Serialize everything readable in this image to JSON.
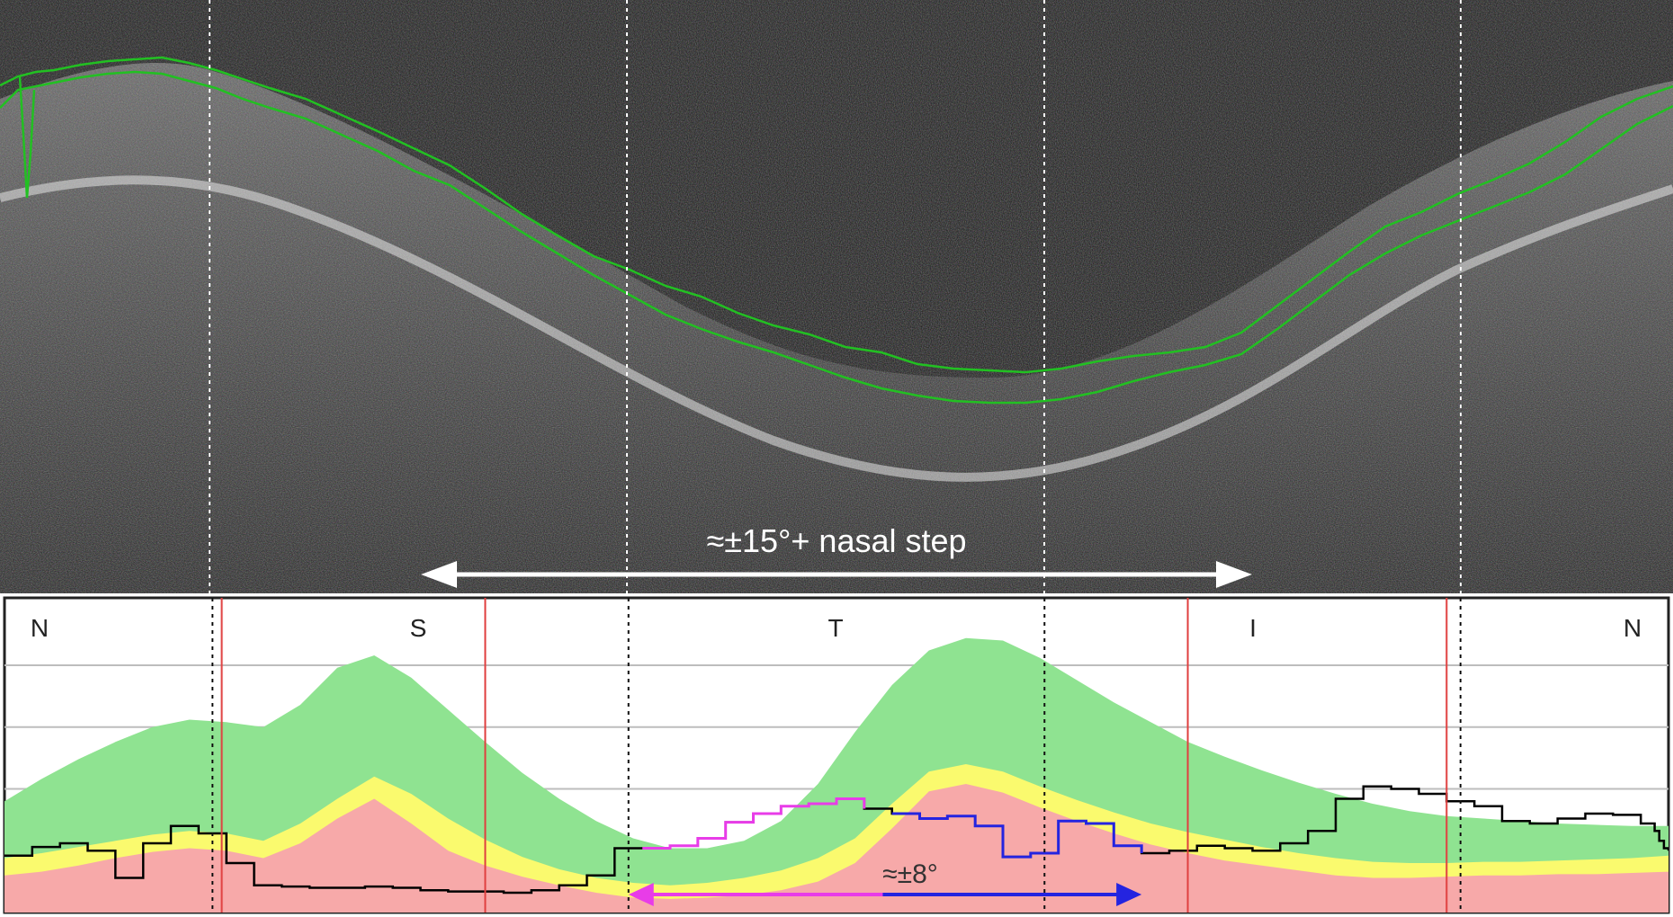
{
  "figure": {
    "bscan_annotation": "≈±15°+ nasal step",
    "profile_annotation": "≈±8°"
  },
  "chart_data": {
    "type": "area",
    "sector_labels": [
      "N",
      "S",
      "T",
      "I",
      "N"
    ],
    "grid": true,
    "x": [
      0,
      8,
      16,
      24,
      32,
      40,
      48,
      56,
      64,
      72,
      80,
      88,
      96,
      104,
      112,
      120,
      128,
      136,
      144,
      152,
      160,
      168,
      176,
      184,
      192,
      200,
      208,
      216,
      224,
      232,
      240,
      248,
      256,
      264,
      272,
      280,
      288,
      296,
      304,
      312,
      320,
      328,
      336,
      344,
      352,
      360
    ],
    "xlim": [
      0,
      360
    ],
    "ylim": [
      0,
      200
    ],
    "normative_bands": [
      {
        "color": "#f7a9a9",
        "upper": [
          30,
          33,
          38,
          44,
          49,
          52,
          50,
          44,
          56,
          76,
          92,
          72,
          50,
          38,
          29,
          22,
          16,
          12,
          11,
          12,
          14,
          18,
          25,
          40,
          68,
          98,
          104,
          97,
          85,
          74,
          64,
          55,
          48,
          42,
          38,
          34,
          30,
          28,
          28,
          29,
          30,
          30,
          31,
          31,
          32,
          33
        ]
      },
      {
        "color": "#fafa6e",
        "upper": [
          44,
          48,
          53,
          58,
          63,
          66,
          64,
          58,
          72,
          92,
          110,
          96,
          76,
          59,
          45,
          35,
          28,
          24,
          22,
          24,
          28,
          34,
          44,
          60,
          88,
          114,
          120,
          114,
          102,
          91,
          81,
          72,
          65,
          59,
          53,
          48,
          44,
          41,
          40,
          40,
          41,
          41,
          42,
          43,
          44,
          46
        ]
      },
      {
        "color": "#8fe391",
        "upper": [
          90,
          108,
          124,
          138,
          150,
          156,
          154,
          150,
          168,
          198,
          208,
          190,
          164,
          138,
          113,
          92,
          74,
          60,
          52,
          52,
          58,
          74,
          104,
          146,
          184,
          212,
          222,
          220,
          206,
          188,
          170,
          154,
          138,
          126,
          115,
          105,
          96,
          88,
          82,
          78,
          76,
          74,
          72,
          71,
          70,
          70
        ]
      }
    ],
    "measured_series": {
      "color": "#000000",
      "values": [
        46,
        53,
        56,
        50,
        28,
        56,
        70,
        64,
        40,
        22,
        21,
        20,
        20,
        21,
        20,
        18,
        17,
        17,
        16,
        18,
        22,
        30,
        52,
        52,
        54,
        60,
        73,
        80,
        86,
        88,
        92,
        84,
        80,
        76,
        78,
        70,
        45,
        48,
        74,
        72,
        54,
        48,
        50,
        54,
        52,
        50,
        56,
        66,
        92,
        102,
        100,
        96,
        90,
        86,
        74,
        72,
        76,
        80,
        79,
        72,
        66,
        58,
        52,
        50
      ]
    },
    "measured_x": [
      0,
      6,
      12,
      18,
      24,
      30,
      36,
      42,
      48,
      54,
      60,
      66,
      72,
      78,
      84,
      90,
      96,
      102,
      108,
      114,
      120,
      126,
      132,
      138,
      144,
      150,
      156,
      162,
      168,
      174,
      180,
      186,
      192,
      198,
      204,
      210,
      216,
      222,
      228,
      234,
      240,
      246,
      252,
      258,
      264,
      270,
      276,
      282,
      288,
      294,
      300,
      306,
      312,
      318,
      324,
      330,
      336,
      342,
      348,
      354,
      357,
      358,
      359,
      360
    ],
    "highlighted_segments": [
      {
        "color": "#e83ce8",
        "x_start": 135,
        "x_end": 190
      },
      {
        "color": "#2424e0",
        "x_start": 190,
        "x_end": 246
      }
    ],
    "red_markers_x": [
      47,
      104,
      256,
      312
    ],
    "dotted_dividers_x": [
      45,
      135,
      225,
      315
    ]
  }
}
